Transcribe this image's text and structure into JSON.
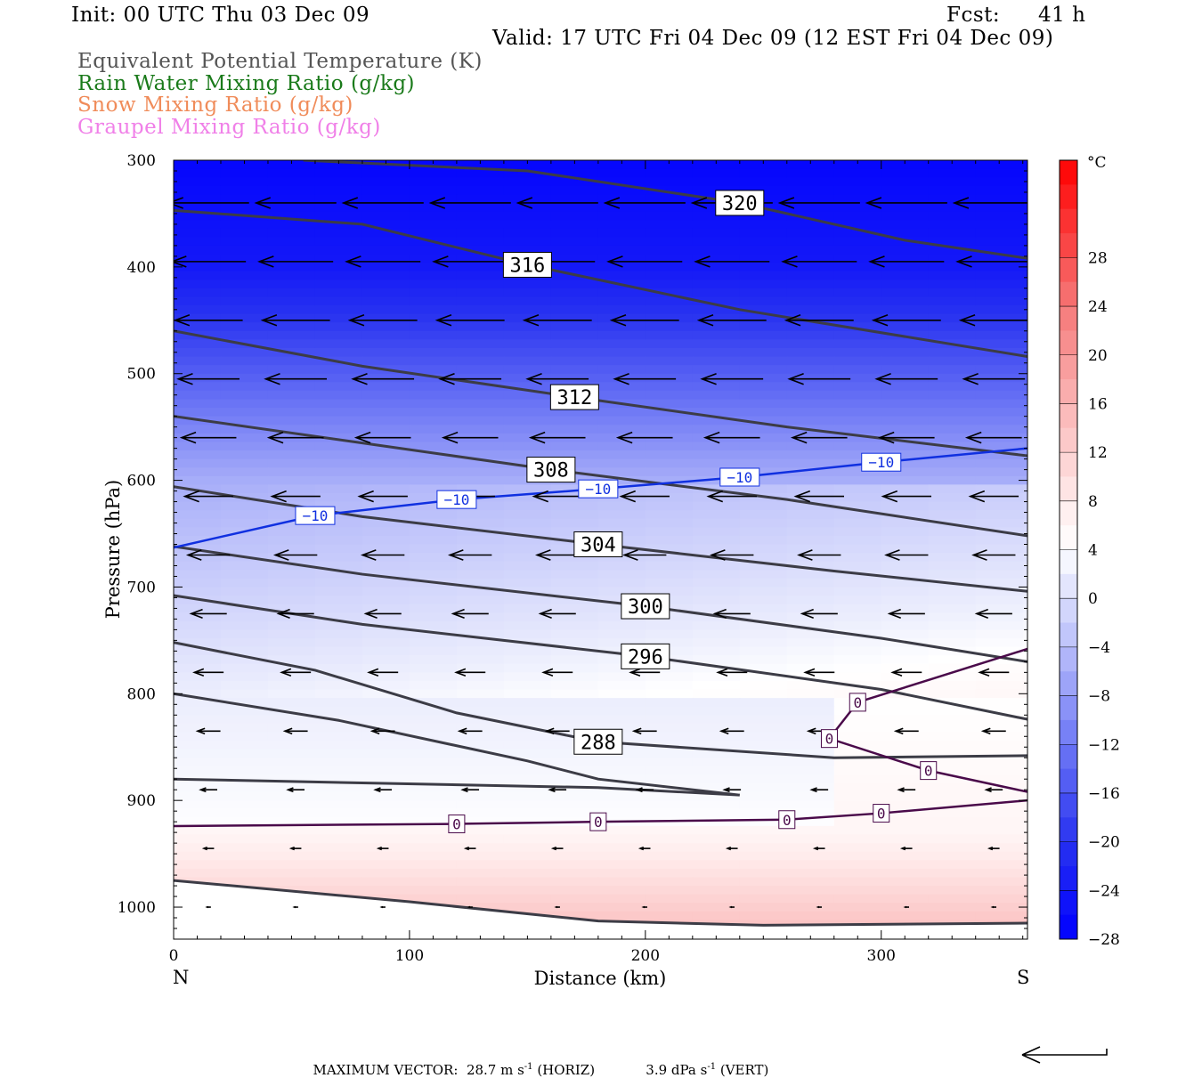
{
  "header": {
    "init": "Init: 00 UTC Thu 03 Dec 09",
    "fcst_label": "Fcst:",
    "fcst_value": "41 h",
    "valid": "Valid: 17 UTC Fri 04 Dec 09 (12 EST Fri 04 Dec 09)"
  },
  "legend": {
    "eqpt": "Equivalent Potential Temperature (K)",
    "rain": "Rain Water Mixing Ratio (g/kg)",
    "snow": "Snow Mixing Ratio (g/kg)",
    "graupel": "Graupel Mixing Ratio (g/kg)",
    "colors": {
      "eqpt": "#555555",
      "rain": "#1a7a1a",
      "snow": "#f08c5a",
      "graupel": "#f080e8"
    }
  },
  "footer": {
    "max_vector_label": "MAXIMUM VECTOR:",
    "horiz_value": "28.7 m s",
    "horiz_exp": "-1",
    "horiz_tag": "(HORIZ)",
    "vert_value": "3.9 dPa s",
    "vert_exp": "-1",
    "vert_tag": "(VERT)"
  },
  "chart_data": {
    "type": "heatmap",
    "xlabel": "Distance (km)",
    "ylabel": "Pressure (hPa)",
    "xlim": [
      0,
      362
    ],
    "ylim": [
      1030,
      300
    ],
    "x_ticks": [
      "0",
      "100",
      "200",
      "300"
    ],
    "y_ticks": [
      "300",
      "400",
      "500",
      "600",
      "700",
      "800",
      "900",
      "1000"
    ],
    "x_end_labels": {
      "left": "N",
      "right": "S"
    },
    "colorbar": {
      "unit": "°C",
      "labels": [
        "28",
        "24",
        "20",
        "16",
        "12",
        "8",
        "4",
        "0",
        "−4",
        "−8",
        "−12",
        "−16",
        "−20",
        "−24",
        "−28"
      ],
      "range": [
        -32,
        32
      ]
    },
    "temperature_contours": [
      {
        "label": "−10",
        "points": [
          [
            0,
            663
          ],
          [
            60,
            633
          ],
          [
            120,
            618
          ],
          [
            180,
            608
          ],
          [
            240,
            597
          ],
          [
            300,
            583
          ],
          [
            362,
            570
          ]
        ]
      },
      {
        "label": "0",
        "points": [
          [
            0,
            924
          ],
          [
            120,
            922
          ],
          [
            180,
            920
          ],
          [
            260,
            918
          ],
          [
            300,
            912
          ],
          [
            362,
            900
          ]
        ]
      },
      {
        "label": "0",
        "points": [
          [
            362,
            758
          ],
          [
            290,
            808
          ],
          [
            278,
            842
          ],
          [
            320,
            872
          ],
          [
            362,
            892
          ]
        ]
      }
    ],
    "theta_e_contours": [
      {
        "label": "320",
        "points": [
          [
            55,
            300
          ],
          [
            150,
            310
          ],
          [
            240,
            340
          ],
          [
            310,
            375
          ],
          [
            362,
            392
          ]
        ]
      },
      {
        "label": "316",
        "points": [
          [
            0,
            347
          ],
          [
            80,
            360
          ],
          [
            150,
            398
          ],
          [
            240,
            440
          ],
          [
            362,
            484
          ]
        ]
      },
      {
        "label": "312",
        "points": [
          [
            0,
            460
          ],
          [
            80,
            493
          ],
          [
            170,
            522
          ],
          [
            260,
            550
          ],
          [
            362,
            577
          ]
        ]
      },
      {
        "label": "308",
        "points": [
          [
            0,
            540
          ],
          [
            80,
            565
          ],
          [
            160,
            590
          ],
          [
            260,
            618
          ],
          [
            362,
            652
          ]
        ]
      },
      {
        "label": "304",
        "points": [
          [
            0,
            606
          ],
          [
            80,
            634
          ],
          [
            180,
            660
          ],
          [
            280,
            685
          ],
          [
            362,
            704
          ]
        ]
      },
      {
        "label": "300",
        "points": [
          [
            0,
            662
          ],
          [
            80,
            688
          ],
          [
            200,
            718
          ],
          [
            300,
            748
          ],
          [
            362,
            770
          ]
        ]
      },
      {
        "label": "296",
        "points": [
          [
            0,
            708
          ],
          [
            80,
            735
          ],
          [
            200,
            765
          ],
          [
            300,
            796
          ],
          [
            362,
            824
          ]
        ]
      },
      {
        "label": "288",
        "points": [
          [
            0,
            752
          ],
          [
            60,
            778
          ],
          [
            120,
            818
          ],
          [
            180,
            845
          ],
          [
            280,
            860
          ],
          [
            362,
            858
          ]
        ]
      },
      {
        "label": "",
        "points": [
          [
            0,
            800
          ],
          [
            70,
            825
          ],
          [
            150,
            863
          ],
          [
            180,
            880
          ],
          [
            240,
            895
          ],
          [
            180,
            888
          ],
          [
            0,
            880
          ]
        ]
      },
      {
        "label": "",
        "points": [
          [
            0,
            975
          ],
          [
            100,
            995
          ],
          [
            180,
            1013
          ],
          [
            250,
            1017
          ],
          [
            362,
            1015
          ]
        ]
      }
    ],
    "wind_barbs_note": "horizontal vectors point west, strongest aloft (~28.7 m/s max)"
  }
}
